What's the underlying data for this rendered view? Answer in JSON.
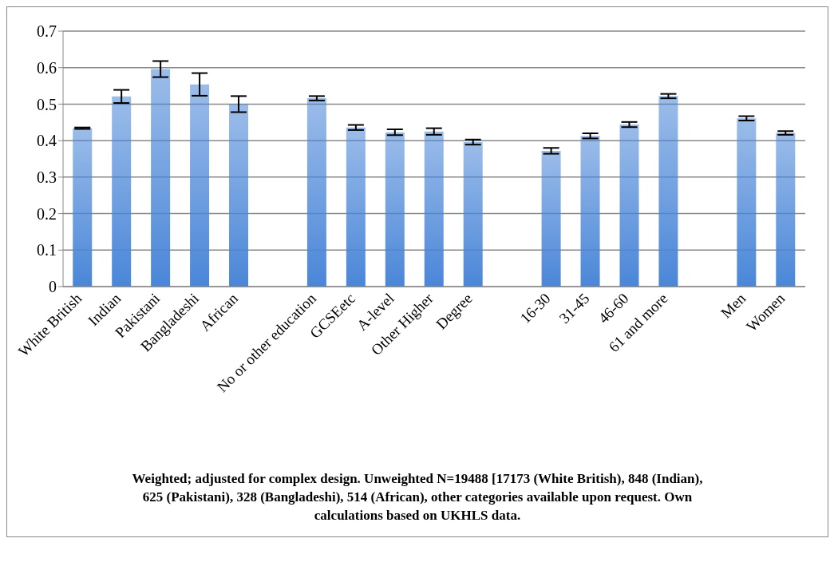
{
  "chart_data": {
    "type": "bar",
    "categories": [
      "White British",
      "Indian",
      "Pakistani",
      "Bangladeshi",
      "African",
      null,
      "No or other education",
      "GCSEetc",
      "A-level",
      "Other Higher",
      "Degree",
      null,
      "16-30",
      "31-45",
      "46-60",
      "61 and more",
      null,
      "Men",
      "Women"
    ],
    "values": [
      0.434,
      0.521,
      0.596,
      0.554,
      0.5,
      null,
      0.516,
      0.436,
      0.423,
      0.425,
      0.396,
      null,
      0.372,
      0.413,
      0.444,
      0.522,
      null,
      0.461,
      0.421
    ],
    "errors": [
      0.002,
      0.018,
      0.022,
      0.031,
      0.022,
      null,
      0.006,
      0.007,
      0.008,
      0.009,
      0.007,
      null,
      0.008,
      0.007,
      0.007,
      0.006,
      null,
      0.006,
      0.005
    ],
    "color": "#4a86d8",
    "ylim": [
      0,
      0.7
    ],
    "yticks": [
      0,
      0.1,
      0.2,
      0.3,
      0.4,
      0.5,
      0.6,
      0.7
    ],
    "grid": "y",
    "legend": false,
    "annotations": [
      "Weighted; adjusted for complex design. Unweighted N=19488 [17173 (White British), 848 (Indian), 625 (Pakistani), 328 (Bangladeshi),  514 (African), other categories available upon request. Own calculations based on UKHLS data."
    ]
  }
}
